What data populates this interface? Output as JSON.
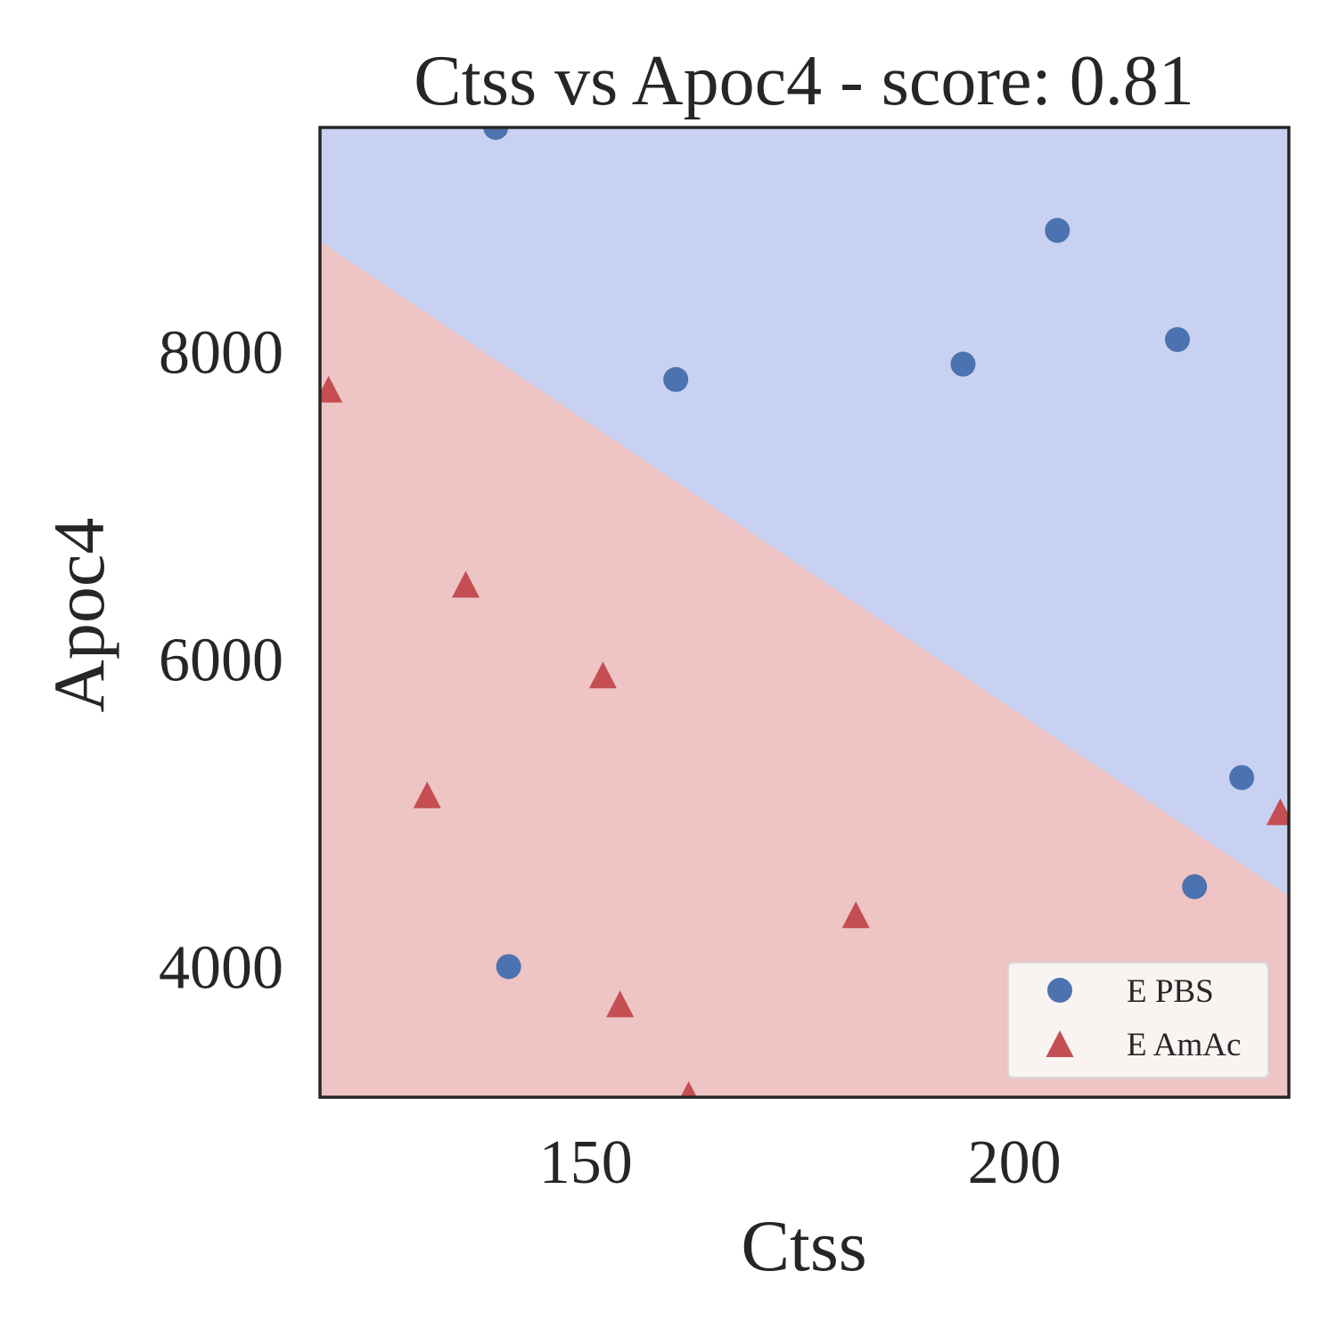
{
  "chart_data": {
    "type": "scatter",
    "title": "Ctss vs Apoc4 - score: 0.81",
    "xlabel": "Ctss",
    "ylabel": "Apoc4",
    "xlim": [
      119,
      232
    ],
    "ylim": [
      3150,
      9460
    ],
    "xticks": [
      150,
      200
    ],
    "xtick_labels": [
      "150",
      "200"
    ],
    "yticks": [
      4000,
      6000,
      8000
    ],
    "ytick_labels": [
      "4000",
      "6000",
      "8000"
    ],
    "grid": false,
    "legend_position": "bottom-right",
    "decision_boundary": {
      "description": "linear classifier boundary",
      "x": [
        119,
        232
      ],
      "y": [
        8720,
        4460
      ],
      "region_above": "E PBS",
      "region_below": "E AmAc"
    },
    "series": [
      {
        "name": "E PBS",
        "marker": "circle",
        "color": "#4c72b0",
        "region_color": "#c8d1f1",
        "points": [
          {
            "x": 139.5,
            "y": 9460
          },
          {
            "x": 205,
            "y": 8790
          },
          {
            "x": 219,
            "y": 8080
          },
          {
            "x": 194,
            "y": 7920
          },
          {
            "x": 160.5,
            "y": 7820
          },
          {
            "x": 226.5,
            "y": 5230
          },
          {
            "x": 221,
            "y": 4520
          },
          {
            "x": 141,
            "y": 4000
          }
        ]
      },
      {
        "name": "E AmAc",
        "marker": "triangle",
        "color": "#c44e52",
        "region_color": "#eec4c4",
        "points": [
          {
            "x": 120,
            "y": 7740
          },
          {
            "x": 136,
            "y": 6470
          },
          {
            "x": 152,
            "y": 5880
          },
          {
            "x": 131.5,
            "y": 5100
          },
          {
            "x": 231,
            "y": 4990
          },
          {
            "x": 181.5,
            "y": 4320
          },
          {
            "x": 154,
            "y": 3740
          },
          {
            "x": 162,
            "y": 3150
          }
        ]
      }
    ]
  }
}
